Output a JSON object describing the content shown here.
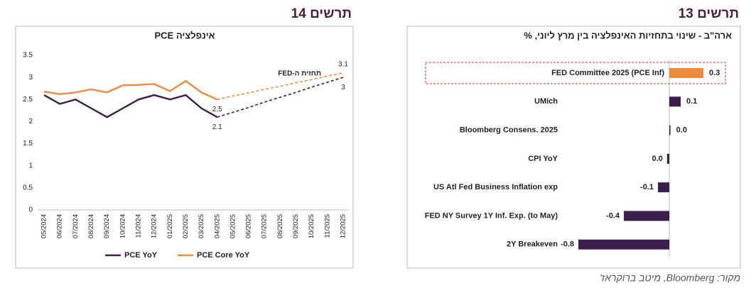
{
  "source": "מקור: Bloomberg, מיטב ברוקראז'",
  "chart_data": [
    {
      "type": "line",
      "heading": "תרשים 14",
      "title": "אינפלציה PCE",
      "annotation": "תחזית ה-FED",
      "categories": [
        "05/2024",
        "06/2024",
        "07/2024",
        "08/2024",
        "09/2024",
        "10/2024",
        "11/2024",
        "12/2024",
        "01/2025",
        "02/2025",
        "03/2025",
        "04/2025",
        "05/2025",
        "06/2025",
        "07/2025",
        "08/2025",
        "09/2025",
        "10/2025",
        "11/2025",
        "12/2025"
      ],
      "series": [
        {
          "name": "PCE YoY",
          "color": "#3b1d4e",
          "values": [
            2.6,
            2.4,
            2.5,
            2.3,
            2.1,
            2.3,
            2.5,
            2.6,
            2.5,
            2.6,
            2.3,
            2.1,
            2.21,
            2.32,
            2.44,
            2.55,
            2.66,
            2.78,
            2.89,
            3
          ]
        },
        {
          "name": "PCE Core YoY",
          "color": "#f08a3c",
          "values": [
            2.68,
            2.62,
            2.66,
            2.73,
            2.66,
            2.82,
            2.83,
            2.85,
            2.69,
            2.92,
            2.66,
            2.5,
            2.58,
            2.65,
            2.73,
            2.8,
            2.88,
            2.95,
            3.03,
            3.1
          ]
        }
      ],
      "dashed_from_index": 11,
      "labeled_points": [
        11,
        19
      ],
      "ylim": [
        0,
        3.5
      ],
      "yticks": [
        0,
        0.5,
        1,
        1.5,
        2,
        2.5,
        3,
        3.5
      ],
      "grid": false,
      "legend": "bottom"
    },
    {
      "type": "hbar",
      "heading": "תרשים 13",
      "title": "ארה\"ב - שינוי בתחזיות האינפלציה בין מרץ ליוני, %",
      "categories": [
        "FED Committee 2025 (PCE Inf)",
        "UMich",
        "Bloomberg Consens. 2025",
        "CPI YoY",
        "US Atl Fed Business Inflation exp",
        "FED NY Survey 1Y Inf. Exp. (to May)",
        "2Y Breakeven"
      ],
      "values": [
        0.3,
        0.1,
        0.01,
        -0.02,
        -0.1,
        -0.4,
        -0.8
      ],
      "value_labels": [
        "0.3",
        "0.1",
        "0.0",
        "0.0",
        "-0.1",
        "-0.4",
        "-0.8"
      ],
      "colors": [
        "#f08a3c",
        "#3b1d4e",
        "#3b1d4e",
        "#3b1d4e",
        "#3b1d4e",
        "#3b1d4e",
        "#3b1d4e"
      ],
      "highlight_index": 0
    }
  ]
}
